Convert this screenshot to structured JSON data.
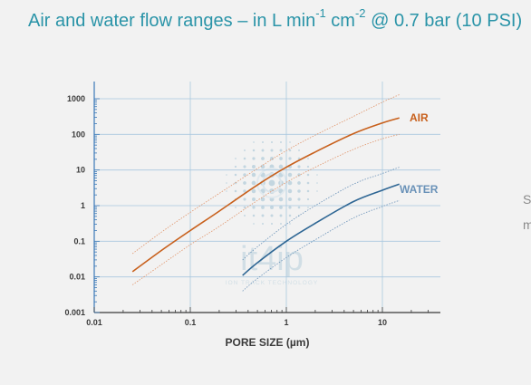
{
  "header": {
    "title_part1": "Air and water flow ranges – in L min",
    "title_sup1": "-1",
    "title_part2": " cm",
    "title_sup2": "-2",
    "title_part3": " @ 0.7 bar (10 PSI)"
  },
  "watermark": {
    "brand": "it4ip",
    "tagline": "ION TRACK TECHNOLOGY"
  },
  "side_fragments": [
    "S",
    "m"
  ],
  "colors": {
    "air": "#c8601c",
    "air_band": "#e0946a",
    "water": "#2e6694",
    "water_band": "#6a92b8",
    "grid": "#a9c8df",
    "axis": "#3a3a3a",
    "axis_blue": "#3b79b8",
    "title": "#2a94a8"
  },
  "chart_data": {
    "type": "line",
    "title": "Air and water flow ranges – in L min-1 cm-2 @ 0.7 bar (10 PSI)",
    "xlabel": "PORE SIZE (µm)",
    "ylabel": "",
    "xscale": "log",
    "yscale": "log",
    "xlim": [
      0.01,
      40
    ],
    "ylim": [
      0.001,
      2000
    ],
    "x_ticks": [
      0.01,
      0.1,
      1,
      10
    ],
    "x_tick_labels": [
      "0.01",
      "0.1",
      "1",
      "10"
    ],
    "y_ticks": [
      0.001,
      0.01,
      0.1,
      1,
      10,
      100,
      1000
    ],
    "y_tick_labels": [
      "0.001",
      "0.01",
      "0.1",
      "1",
      "10",
      "100",
      "1000"
    ],
    "grid": true,
    "series": [
      {
        "name": "AIR",
        "role": "main",
        "x": [
          0.025,
          0.05,
          0.1,
          0.2,
          0.5,
          1,
          2,
          5,
          10,
          15
        ],
        "y": [
          0.014,
          0.055,
          0.2,
          0.7,
          3.8,
          12,
          32,
          105,
          210,
          290
        ]
      },
      {
        "name": "",
        "role": "air-upper",
        "x": [
          0.025,
          0.05,
          0.1,
          0.2,
          0.5,
          1,
          2,
          5,
          10,
          15
        ],
        "y": [
          0.045,
          0.18,
          0.65,
          2.2,
          11,
          35,
          95,
          320,
          800,
          1300
        ]
      },
      {
        "name": "",
        "role": "air-lower",
        "x": [
          0.025,
          0.05,
          0.1,
          0.2,
          0.5,
          1,
          2,
          5,
          10,
          15
        ],
        "y": [
          0.006,
          0.022,
          0.08,
          0.26,
          1.4,
          4.5,
          12,
          38,
          75,
          100
        ]
      },
      {
        "name": "WATER",
        "role": "main",
        "x": [
          0.35,
          0.5,
          1,
          2,
          5,
          10,
          15
        ],
        "y": [
          0.011,
          0.025,
          0.1,
          0.32,
          1.3,
          2.7,
          4
        ]
      },
      {
        "name": "",
        "role": "water-upper",
        "x": [
          0.35,
          0.5,
          1,
          2,
          5,
          10,
          15
        ],
        "y": [
          0.03,
          0.07,
          0.3,
          1,
          4,
          8,
          12
        ]
      },
      {
        "name": "",
        "role": "water-lower",
        "x": [
          0.35,
          0.5,
          1,
          2,
          5,
          10,
          15
        ],
        "y": [
          0.004,
          0.009,
          0.035,
          0.11,
          0.45,
          0.95,
          1.4
        ]
      }
    ]
  }
}
